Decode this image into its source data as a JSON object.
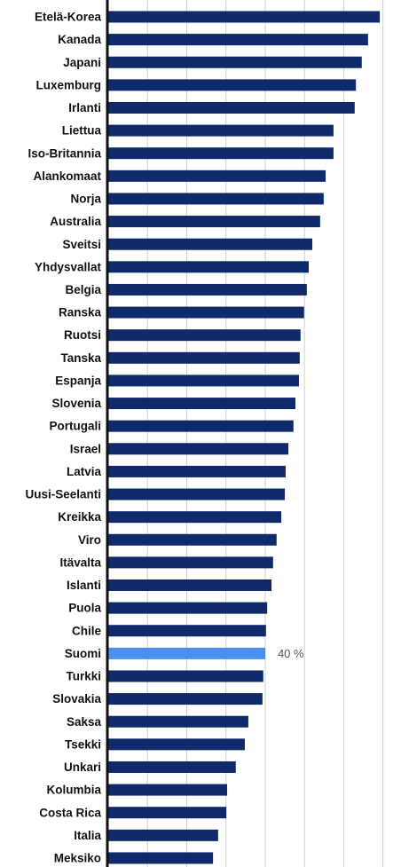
{
  "chart_data": {
    "type": "barh",
    "categories": [
      "Etelä-Korea",
      "Kanada",
      "Japani",
      "Luxemburg",
      "Irlanti",
      "Liettua",
      "Iso-Britannia",
      "Alankomaat",
      "Norja",
      "Australia",
      "Sveitsi",
      "Yhdysvallat",
      "Belgia",
      "Ranska",
      "Ruotsi",
      "Tanska",
      "Espanja",
      "Slovenia",
      "Portugali",
      "Israel",
      "Latvia",
      "Uusi-Seelanti",
      "Kreikka",
      "Viro",
      "Itävalta",
      "Islanti",
      "Puola",
      "Chile",
      "Suomi",
      "Turkki",
      "Slovakia",
      "Saksa",
      "Tsekki",
      "Unkari",
      "Kolumbia",
      "Costa Rica",
      "Italia",
      "Meksiko"
    ],
    "values": [
      69.2,
      66.2,
      64.6,
      63.1,
      62.8,
      57.4,
      57.4,
      55.4,
      54.9,
      54.0,
      52.0,
      51.1,
      50.6,
      49.9,
      49.0,
      48.8,
      48.6,
      47.7,
      47.2,
      45.9,
      45.2,
      45.0,
      44.1,
      42.9,
      42.0,
      41.6,
      40.5,
      40.2,
      40,
      39.5,
      39.3,
      35.7,
      34.8,
      32.5,
      30.3,
      30.1,
      28.0,
      26.7
    ],
    "value_labels": [
      null,
      null,
      null,
      null,
      null,
      null,
      null,
      null,
      null,
      null,
      null,
      null,
      null,
      null,
      null,
      null,
      null,
      null,
      null,
      null,
      null,
      null,
      null,
      null,
      null,
      null,
      null,
      null,
      "40 %",
      null,
      null,
      null,
      null,
      null,
      null,
      null,
      null,
      null
    ],
    "colors": [
      "#0e2a6a",
      "#0e2a6a",
      "#0e2a6a",
      "#0e2a6a",
      "#0e2a6a",
      "#0e2a6a",
      "#0e2a6a",
      "#0e2a6a",
      "#0e2a6a",
      "#0e2a6a",
      "#0e2a6a",
      "#0e2a6a",
      "#0e2a6a",
      "#0e2a6a",
      "#0e2a6a",
      "#0e2a6a",
      "#0e2a6a",
      "#0e2a6a",
      "#0e2a6a",
      "#0e2a6a",
      "#0e2a6a",
      "#0e2a6a",
      "#0e2a6a",
      "#0e2a6a",
      "#0e2a6a",
      "#0e2a6a",
      "#0e2a6a",
      "#0e2a6a",
      "#4a8ef0",
      "#0e2a6a",
      "#0e2a6a",
      "#0e2a6a",
      "#0e2a6a",
      "#0e2a6a",
      "#0e2a6a",
      "#0e2a6a",
      "#0e2a6a",
      "#0e2a6a"
    ],
    "xlim": [
      0,
      74.6
    ],
    "xticks": [
      10,
      20,
      30,
      40,
      50,
      60,
      70
    ],
    "grid": true
  }
}
